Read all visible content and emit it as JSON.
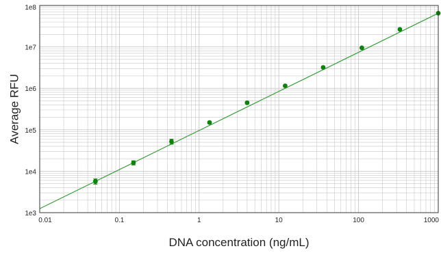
{
  "chart_data": {
    "type": "scatter",
    "title": "",
    "xlabel": "DNA concentration (ng/mL)",
    "ylabel": "Average RFU",
    "x_scale": "log",
    "y_scale": "log",
    "xlim": [
      0.01,
      1000
    ],
    "ylim": [
      1000,
      100000000
    ],
    "x_ticks": [
      {
        "value": 0.01,
        "label": "0.01"
      },
      {
        "value": 0.1,
        "label": "0.1"
      },
      {
        "value": 1,
        "label": "1"
      },
      {
        "value": 10,
        "label": "10"
      },
      {
        "value": 100,
        "label": "100"
      },
      {
        "value": 1000,
        "label": "1000"
      }
    ],
    "y_ticks": [
      {
        "value": 1000,
        "label": "1e3"
      },
      {
        "value": 10000,
        "label": "1e4"
      },
      {
        "value": 100000,
        "label": "1e5"
      },
      {
        "value": 1000000,
        "label": "1e6"
      },
      {
        "value": 10000000,
        "label": "1e7"
      },
      {
        "value": 100000000,
        "label": "1e8"
      }
    ],
    "grid": true,
    "colors": {
      "marker": "#108010",
      "line": "#3a9a3a",
      "grid": "#c8c8c8",
      "axis": "#333333"
    },
    "series": [
      {
        "points": [
          {
            "x": 0.05,
            "y": 5700,
            "err": 800
          },
          {
            "x": 0.15,
            "y": 16000,
            "err": 1800
          },
          {
            "x": 0.45,
            "y": 52000,
            "err": 7000
          },
          {
            "x": 1.35,
            "y": 150000,
            "err": 10000
          },
          {
            "x": 4.0,
            "y": 450000,
            "err": 30000
          },
          {
            "x": 12.0,
            "y": 1150000,
            "err": 60000
          },
          {
            "x": 36.0,
            "y": 3200000,
            "err": 150000
          },
          {
            "x": 110.0,
            "y": 9500000,
            "err": 400000
          },
          {
            "x": 330.0,
            "y": 26500000,
            "err": 1000000
          },
          {
            "x": 1000.0,
            "y": 65000000,
            "err": 2000000
          }
        ]
      }
    ],
    "fit_line": {
      "x": [
        0.01,
        1000
      ],
      "y": [
        1250,
        65000000
      ]
    }
  }
}
